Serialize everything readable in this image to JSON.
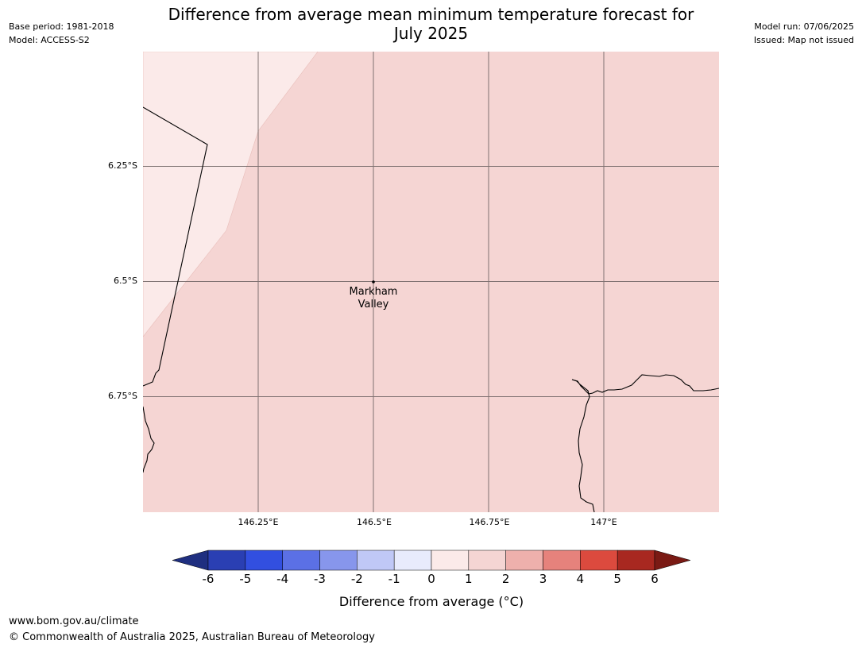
{
  "header": {
    "base_period": "Base period: 1981-2018",
    "model": "Model: ACCESS-S2",
    "model_run": "Model run: 07/06/2025",
    "issued": "Issued: Map not issued",
    "title_line1": "Difference from average mean minimum temperature forecast for",
    "title_line2": "July 2025"
  },
  "map": {
    "lat_labels": [
      "6.25°S",
      "6.5°S",
      "6.75°S"
    ],
    "lon_labels": [
      "146.25°E",
      "146.5°E",
      "146.75°E",
      "147°E"
    ],
    "place": {
      "name_line1": "Markham",
      "name_line2": "Valley"
    },
    "colors": {
      "background_anomaly_1_2": "#f5d5d3",
      "anomaly_0_1": "#fbeae9",
      "grid": "#6b6060",
      "coastline": "#000000"
    }
  },
  "legend": {
    "label": "Difference from average (°C)",
    "ticks": [
      "-6",
      "-5",
      "-4",
      "-3",
      "-2",
      "-1",
      "0",
      "1",
      "2",
      "3",
      "4",
      "5",
      "6"
    ],
    "bins": [
      {
        "range": "< -6",
        "color": "#1f2f80"
      },
      {
        "range": "-6 to -5",
        "color": "#2a3fb3"
      },
      {
        "range": "-5 to -4",
        "color": "#324fe0"
      },
      {
        "range": "-4 to -3",
        "color": "#5b70e5"
      },
      {
        "range": "-3 to -2",
        "color": "#8796ec"
      },
      {
        "range": "-2 to -1",
        "color": "#c0c8f6"
      },
      {
        "range": "-1 to 0",
        "color": "#e8ebfc"
      },
      {
        "range": "0 to 1",
        "color": "#fbeae9"
      },
      {
        "range": "1 to 2",
        "color": "#f5d5d3"
      },
      {
        "range": "2 to 3",
        "color": "#eeb0ac"
      },
      {
        "range": "3 to 4",
        "color": "#e6827c"
      },
      {
        "range": "4 to 5",
        "color": "#dc4a3e"
      },
      {
        "range": "5 to 6",
        "color": "#a82820"
      },
      {
        "range": "> 6",
        "color": "#7a1a14"
      }
    ]
  },
  "footer": {
    "url": "www.bom.gov.au/climate",
    "copyright": "© Commonwealth of Australia 2025, Australian Bureau of Meteorology"
  }
}
